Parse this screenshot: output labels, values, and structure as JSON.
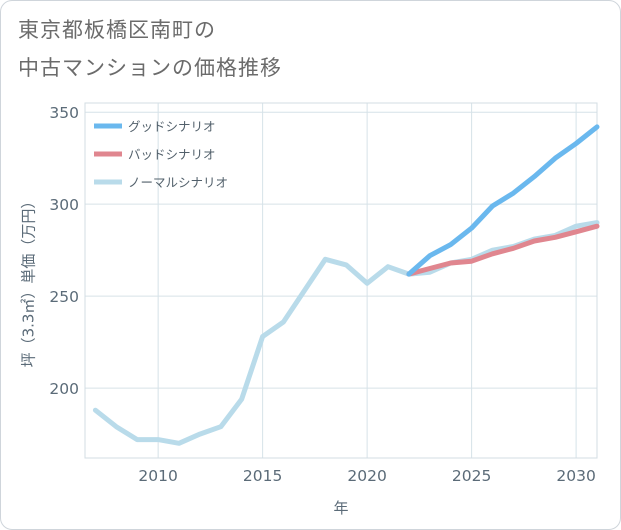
{
  "chart_data": {
    "type": "line",
    "title": "東京都板橋区南町の中古マンションの価格推移",
    "title_lines": [
      "東京都板橋区南町の",
      "中古マンションの価格推移"
    ],
    "xlabel": "年",
    "ylabel": "坪（3.3㎡）単価（万円）",
    "xlim": [
      2006.5,
      2031
    ],
    "ylim": [
      162,
      355
    ],
    "xticks": [
      2010,
      2015,
      2020,
      2025,
      2030
    ],
    "yticks": [
      200,
      250,
      300,
      350
    ],
    "legend_position": "top-left",
    "series": [
      {
        "name": "グッドシナリオ",
        "color": "#6ab8ee",
        "x": [
          2022,
          2023,
          2024,
          2025,
          2026,
          2027,
          2028,
          2029,
          2030,
          2031
        ],
        "values": [
          262,
          272,
          278,
          287,
          299,
          306,
          315,
          325,
          333,
          342
        ]
      },
      {
        "name": "バッドシナリオ",
        "color": "#e0868f",
        "x": [
          2022,
          2023,
          2024,
          2025,
          2026,
          2027,
          2028,
          2029,
          2030,
          2031
        ],
        "values": [
          262,
          265,
          268,
          269,
          273,
          276,
          280,
          282,
          285,
          288
        ]
      },
      {
        "name": "ノーマルシナリオ",
        "color": "#b9dbea",
        "x": [
          2007,
          2008,
          2009,
          2010,
          2011,
          2012,
          2013,
          2014,
          2015,
          2016,
          2017,
          2018,
          2019,
          2020,
          2021,
          2022,
          2023,
          2024,
          2025,
          2026,
          2027,
          2028,
          2029,
          2030,
          2031
        ],
        "values": [
          188,
          179,
          172,
          172,
          170,
          175,
          179,
          194,
          228,
          236,
          253,
          270,
          267,
          257,
          266,
          262,
          263,
          268,
          270,
          275,
          277,
          281,
          283,
          288,
          290
        ]
      }
    ]
  }
}
